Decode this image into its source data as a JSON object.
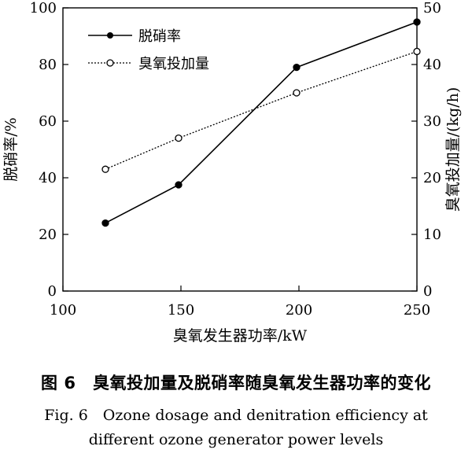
{
  "chart_data": {
    "type": "line",
    "x": [
      118,
      149,
      199,
      250
    ],
    "xlabel": "臭氧发生器功率/kW",
    "xlim": [
      100,
      250
    ],
    "xticks": [
      100,
      150,
      200,
      250
    ],
    "ylabel_left": "脱硝率/%",
    "ylim_left": [
      0,
      100
    ],
    "yticks_left": [
      0,
      20,
      40,
      60,
      80,
      100
    ],
    "ylabel_right": "臭氧投加量/(kg/h)",
    "ylim_right": [
      0,
      50
    ],
    "yticks_right": [
      0,
      10,
      20,
      30,
      40,
      50
    ],
    "grid": false,
    "legend_position": "top-left",
    "series": [
      {
        "name": "脱硝率",
        "axis": "left",
        "style": "solid",
        "marker": "filled-circle",
        "values": [
          24,
          37.5,
          79,
          95
        ]
      },
      {
        "name": "臭氧投加量",
        "axis": "right",
        "style": "dotted",
        "marker": "open-circle",
        "values": [
          21.5,
          27,
          35,
          42.3
        ]
      }
    ]
  },
  "caption": {
    "cn": "图 6　臭氧投加量及脱硝率随臭氧发生器功率的变化",
    "en_line1": "Fig. 6　Ozone dosage and denitration efficiency at",
    "en_line2": "different ozone generator power levels"
  }
}
